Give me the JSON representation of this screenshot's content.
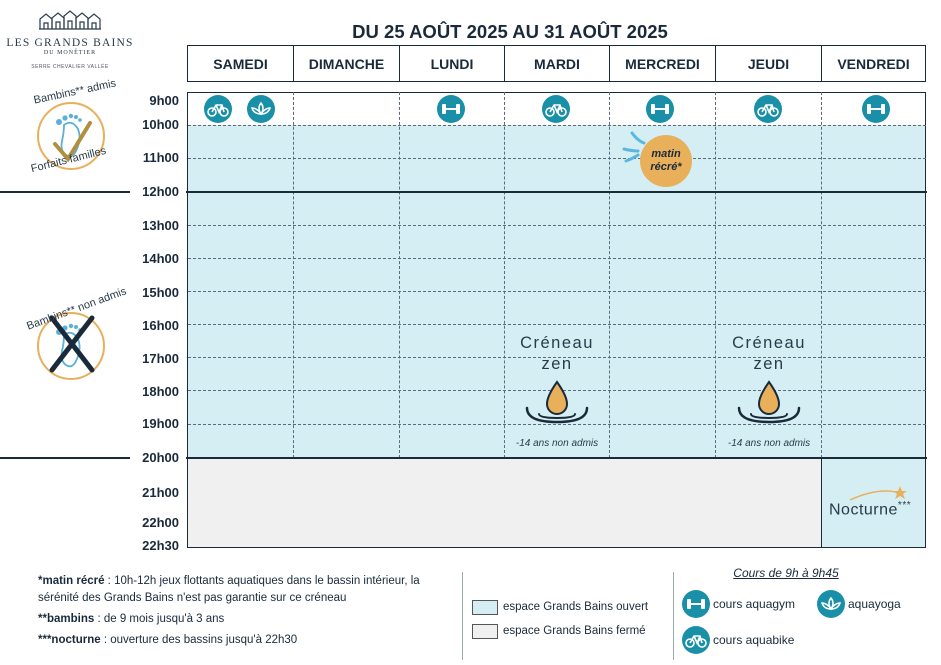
{
  "logo": {
    "name": "LES GRANDS BAINS",
    "sub": "DU MONÊTIER",
    "tiny": "SERRE CHEVALIER VALLÉE"
  },
  "title": "DU 25 AOÛT 2025 AU 31 AOÛT 2025",
  "days": [
    "SAMEDI",
    "DIMANCHE",
    "LUNDI",
    "MARDI",
    "MERCREDI",
    "JEUDI",
    "VENDREDI"
  ],
  "times": [
    "9h00",
    "10h00",
    "11h00",
    "12h00",
    "13h00",
    "14h00",
    "15h00",
    "16h00",
    "17h00",
    "18h00",
    "19h00",
    "20h00",
    "21h00",
    "22h00",
    "22h30"
  ],
  "side": {
    "admis_top": "Bambins** admis",
    "admis_bottom": "Forfaits familles",
    "non_admis": "Bambins** non admis"
  },
  "matin_recre": {
    "line1": "matin",
    "line2": "récré*"
  },
  "creneau": {
    "line1": "Créneau",
    "line2": "zen",
    "note": "-14 ans non admis"
  },
  "nocturne": {
    "label": "Nocturne",
    "mark": "***"
  },
  "footer": {
    "note1_key": "*matin récré",
    "note1_text": " : 10h-12h jeux flottants aquatiques dans le bassin intérieur, la sérénité des Grands Bains n'est pas garantie sur ce créneau",
    "note2_key": "**bambins",
    "note2_text": " : de 9 mois jusqu'à 3 ans",
    "note3_key": "***nocturne",
    "note3_text": " : ouverture des bassins jusqu'à 22h30"
  },
  "legend": {
    "open": "espace Grands Bains ouvert",
    "closed": "espace Grands Bains fermé",
    "open_color": "#d4eef4",
    "closed_color": "#f0f0f0"
  },
  "cours": {
    "title": "Cours de 9h à 9h45",
    "aquagym": "cours aquagym",
    "aquayoga": "aquayoga",
    "aquabike": "cours aquabike"
  },
  "colors": {
    "accent": "#1a8fa8",
    "open_zone": "#d4eef4",
    "closed_zone": "#f0f0f0",
    "orange": "#e8b05a"
  }
}
